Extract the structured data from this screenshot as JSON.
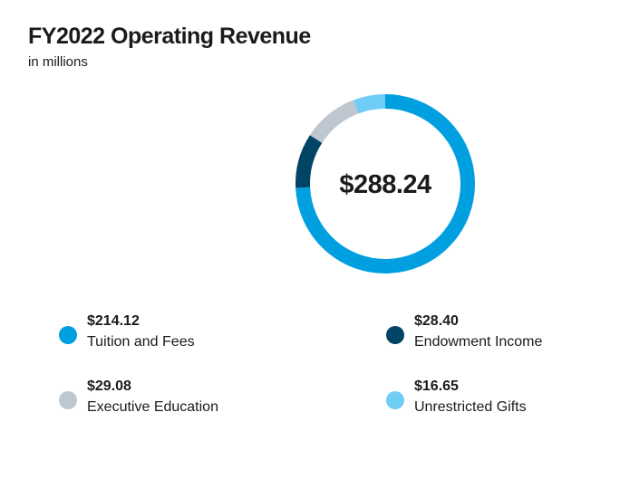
{
  "title": "FY2022 Operating Revenue",
  "subtitle": "in millions",
  "center_total": "$288.24",
  "chart_data": {
    "type": "pie",
    "variant": "donut",
    "title": "FY2022 Operating Revenue",
    "subtitle": "in millions",
    "total": 288.24,
    "center_label": "$288.24",
    "slices": [
      {
        "label": "Tuition and Fees",
        "value": 214.12,
        "value_label": "$214.12",
        "color": "#00a0e0"
      },
      {
        "label": "Endowment Income",
        "value": 28.4,
        "value_label": "$28.40",
        "color": "#004466"
      },
      {
        "label": "Executive Education",
        "value": 29.08,
        "value_label": "$29.08",
        "color": "#bec6d0"
      },
      {
        "label": "Unrestricted Gifts",
        "value": 16.65,
        "value_label": "$16.65",
        "color": "#6fcdf5"
      }
    ],
    "draw_order": [
      "Tuition and Fees",
      "Endowment Income",
      "Executive Education",
      "Unrestricted Gifts"
    ],
    "legend_placement": "bottom"
  },
  "legend": [
    {
      "value": "$214.12",
      "label": "Tuition and Fees",
      "color": "#00a0e0"
    },
    {
      "value": "$28.40",
      "label": "Endowment Income",
      "color": "#004466"
    },
    {
      "value": "$29.08",
      "label": "Executive Education",
      "color": "#bec6d0"
    },
    {
      "value": "$16.65",
      "label": "Unrestricted Gifts",
      "color": "#6fcdf5"
    }
  ]
}
